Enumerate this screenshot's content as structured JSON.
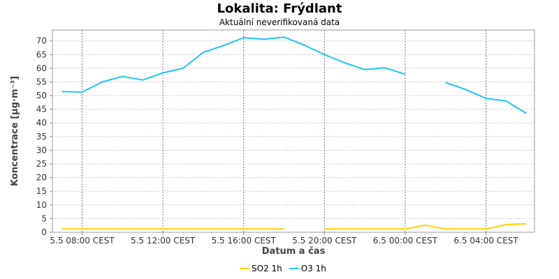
{
  "chart_data": {
    "type": "line",
    "title": "Lokalita: Frýdlant",
    "subtitle": "Aktuální neverifikovaná data",
    "xlabel": "Datum a čas",
    "ylabel": "Koncentrace [µg·m⁻³]",
    "ylim": [
      0,
      74
    ],
    "y_ticks": [
      0,
      5,
      10,
      15,
      20,
      25,
      30,
      35,
      40,
      45,
      50,
      55,
      60,
      65,
      70
    ],
    "x_ticks": [
      {
        "hour": 0,
        "label": "5.5 08:00 CEST"
      },
      {
        "hour": 4,
        "label": "5.5 12:00 CEST"
      },
      {
        "hour": 8,
        "label": "5.5 16:00 CEST"
      },
      {
        "hour": 12,
        "label": "5.5 20:00 CEST"
      },
      {
        "hour": 16,
        "label": "6.5 00:00 CEST"
      },
      {
        "hour": 20,
        "label": "6.5 04:00 CEST"
      }
    ],
    "x_hours": [
      -1,
      0,
      1,
      2,
      3,
      4,
      5,
      6,
      7,
      8,
      9,
      10,
      11,
      12,
      13,
      14,
      15,
      16,
      17,
      18,
      19,
      20,
      21,
      22
    ],
    "grid": true,
    "legend_position": "bottom",
    "series": [
      {
        "name": "SO2 1h",
        "color": "#ffd200",
        "values": [
          1.2,
          1.2,
          1.2,
          1.2,
          1.2,
          1.2,
          1.2,
          1.2,
          1.2,
          1.2,
          1.2,
          1.2,
          null,
          1.2,
          1.2,
          1.2,
          1.2,
          1.2,
          2.6,
          1.2,
          1.2,
          1.2,
          2.8,
          3.1
        ]
      },
      {
        "name": "O3 1h",
        "color": "#22c3f3",
        "values": [
          51.5,
          51.3,
          55.0,
          57.0,
          55.7,
          58.3,
          60.0,
          65.8,
          68.3,
          71.2,
          70.6,
          71.4,
          68.5,
          65.0,
          62.0,
          59.5,
          60.2,
          57.8,
          null,
          54.8,
          52.2,
          49.0,
          48.0,
          43.5
        ]
      }
    ]
  }
}
